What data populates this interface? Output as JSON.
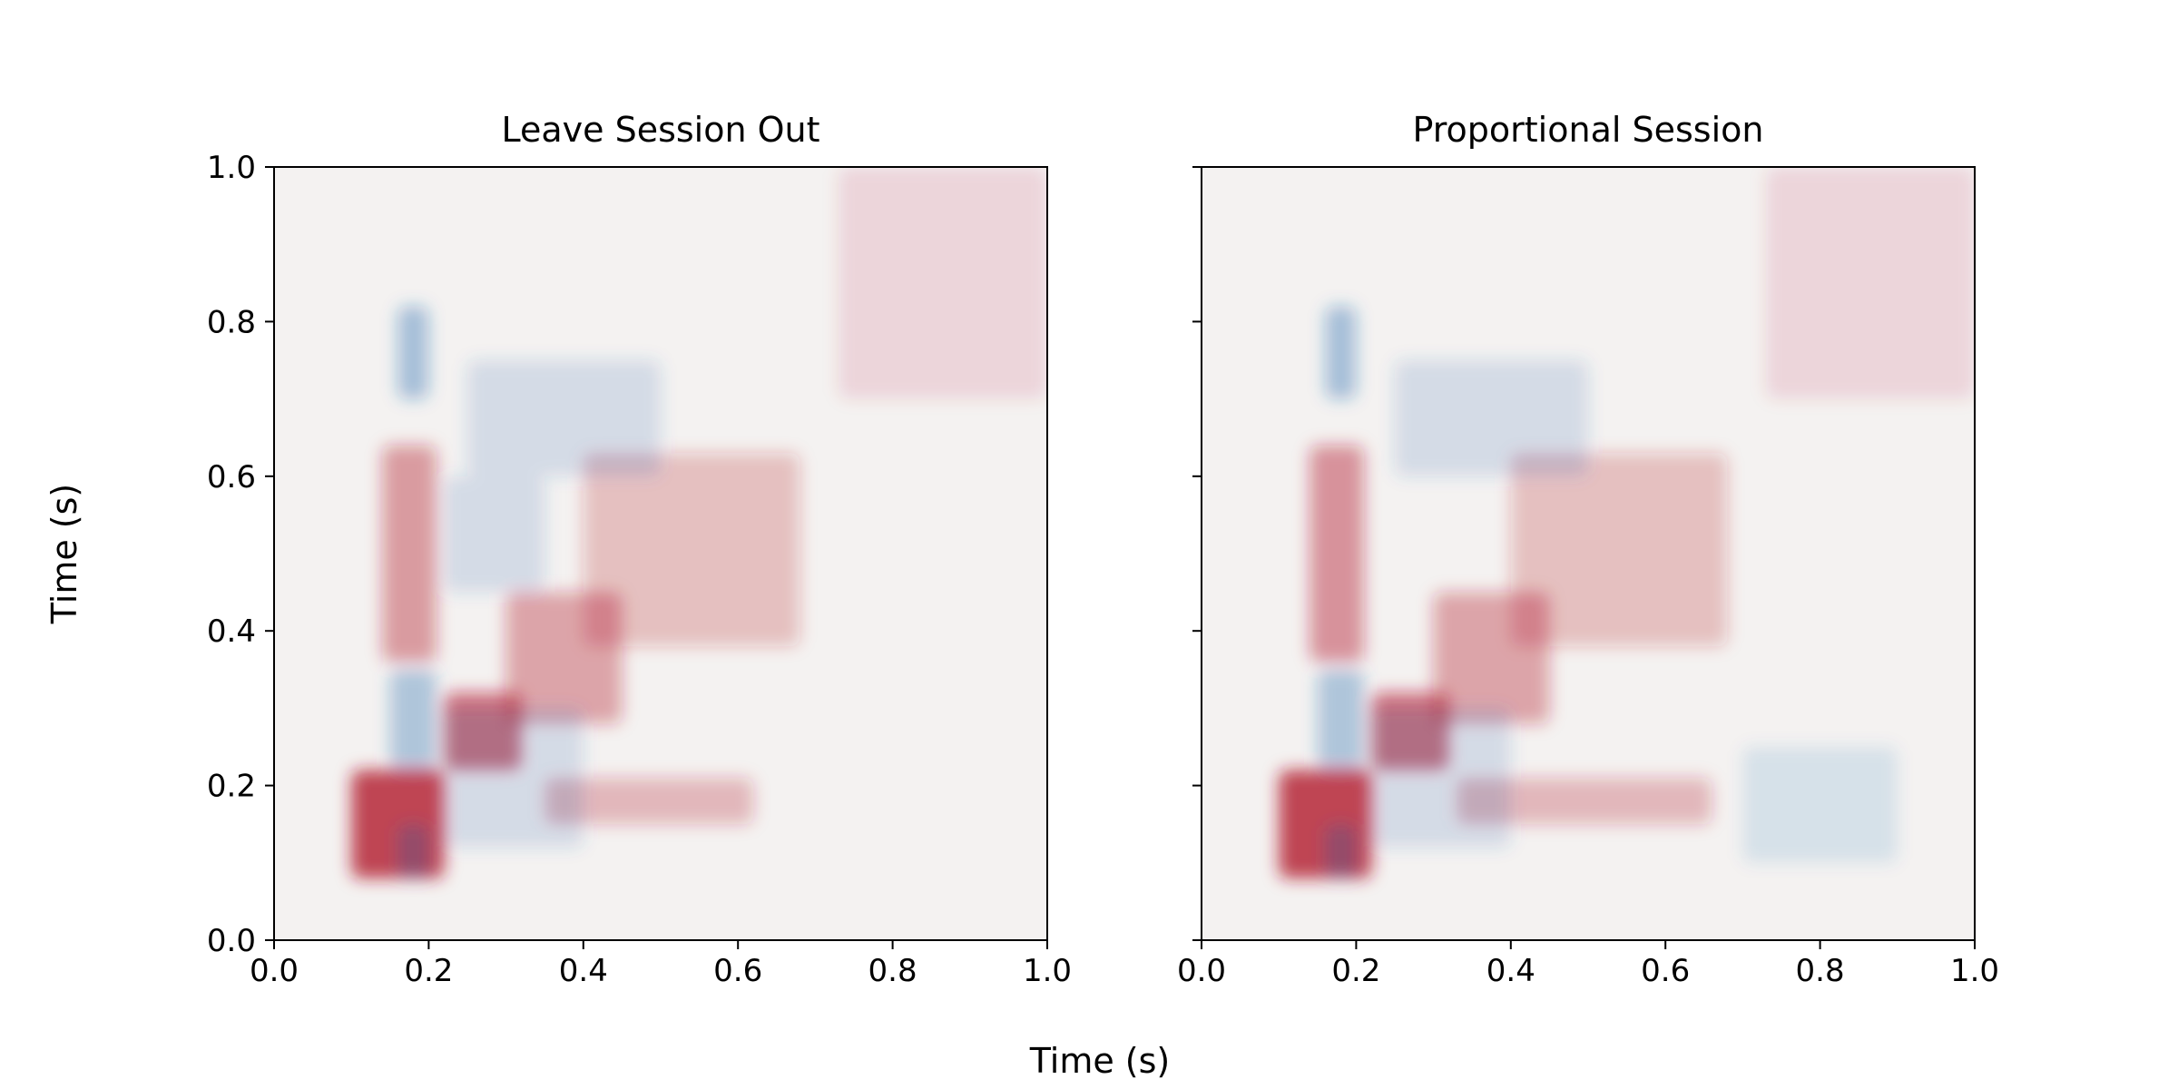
{
  "figure": {
    "xlabel": "Time (s)",
    "ylabel": "Time (s)"
  },
  "chart_data": [
    {
      "type": "heatmap",
      "title": "Leave Session Out",
      "xlabel": "Time (s)",
      "ylabel": "Time (s)",
      "xlim": [
        0.0,
        1.0
      ],
      "ylim": [
        0.0,
        1.0
      ],
      "xticks": [
        "0.0",
        "0.2",
        "0.4",
        "0.6",
        "0.8",
        "1.0"
      ],
      "yticks": [
        "0.0",
        "0.2",
        "0.4",
        "0.6",
        "0.8",
        "1.0"
      ],
      "colormap": "diverging blue-white-red (RdBu_r)",
      "grid": false,
      "legend": false,
      "regions": [
        {
          "x": [
            0.1,
            0.22
          ],
          "y": [
            0.08,
            0.22
          ],
          "sign": "positive",
          "strength": 1.0
        },
        {
          "x": [
            0.22,
            0.32
          ],
          "y": [
            0.22,
            0.32
          ],
          "sign": "positive",
          "strength": 0.75
        },
        {
          "x": [
            0.3,
            0.45
          ],
          "y": [
            0.28,
            0.45
          ],
          "sign": "positive",
          "strength": 0.45
        },
        {
          "x": [
            0.14,
            0.21
          ],
          "y": [
            0.36,
            0.64
          ],
          "sign": "positive",
          "strength": 0.5
        },
        {
          "x": [
            0.4,
            0.68
          ],
          "y": [
            0.38,
            0.63
          ],
          "sign": "positive",
          "strength": 0.3
        },
        {
          "x": [
            0.35,
            0.62
          ],
          "y": [
            0.15,
            0.21
          ],
          "sign": "positive",
          "strength": 0.35
        },
        {
          "x": [
            0.73,
            1.0
          ],
          "y": [
            0.7,
            1.0
          ],
          "sign": "positive",
          "strength": 0.15
        },
        {
          "x": [
            0.15,
            0.21
          ],
          "y": [
            0.22,
            0.35
          ],
          "sign": "negative",
          "strength": 0.4
        },
        {
          "x": [
            0.16,
            0.2
          ],
          "y": [
            0.7,
            0.82
          ],
          "sign": "negative",
          "strength": 0.45
        },
        {
          "x": [
            0.16,
            0.2
          ],
          "y": [
            0.08,
            0.15
          ],
          "sign": "negative",
          "strength": 0.35
        },
        {
          "x": [
            0.22,
            0.4
          ],
          "y": [
            0.12,
            0.3
          ],
          "sign": "negative",
          "strength": 0.2
        },
        {
          "x": [
            0.25,
            0.5
          ],
          "y": [
            0.6,
            0.75
          ],
          "sign": "negative",
          "strength": 0.2
        },
        {
          "x": [
            0.22,
            0.35
          ],
          "y": [
            0.45,
            0.6
          ],
          "sign": "negative",
          "strength": 0.2
        }
      ]
    },
    {
      "type": "heatmap",
      "title": "Proportional Session",
      "xlabel": "Time (s)",
      "ylabel": "Time (s)",
      "xlim": [
        0.0,
        1.0
      ],
      "ylim": [
        0.0,
        1.0
      ],
      "xticks": [
        "0.0",
        "0.2",
        "0.4",
        "0.6",
        "0.8",
        "1.0"
      ],
      "yticks": [],
      "colormap": "diverging blue-white-red (RdBu_r)",
      "grid": false,
      "legend": false,
      "regions": [
        {
          "x": [
            0.1,
            0.22
          ],
          "y": [
            0.08,
            0.22
          ],
          "sign": "positive",
          "strength": 1.0
        },
        {
          "x": [
            0.22,
            0.32
          ],
          "y": [
            0.22,
            0.32
          ],
          "sign": "positive",
          "strength": 0.75
        },
        {
          "x": [
            0.3,
            0.45
          ],
          "y": [
            0.28,
            0.45
          ],
          "sign": "positive",
          "strength": 0.45
        },
        {
          "x": [
            0.14,
            0.21
          ],
          "y": [
            0.36,
            0.64
          ],
          "sign": "positive",
          "strength": 0.55
        },
        {
          "x": [
            0.4,
            0.68
          ],
          "y": [
            0.38,
            0.63
          ],
          "sign": "positive",
          "strength": 0.3
        },
        {
          "x": [
            0.33,
            0.66
          ],
          "y": [
            0.15,
            0.21
          ],
          "sign": "positive",
          "strength": 0.35
        },
        {
          "x": [
            0.73,
            1.0
          ],
          "y": [
            0.7,
            1.0
          ],
          "sign": "positive",
          "strength": 0.15
        },
        {
          "x": [
            0.15,
            0.21
          ],
          "y": [
            0.22,
            0.35
          ],
          "sign": "negative",
          "strength": 0.4
        },
        {
          "x": [
            0.16,
            0.2
          ],
          "y": [
            0.7,
            0.82
          ],
          "sign": "negative",
          "strength": 0.45
        },
        {
          "x": [
            0.16,
            0.2
          ],
          "y": [
            0.08,
            0.15
          ],
          "sign": "negative",
          "strength": 0.35
        },
        {
          "x": [
            0.22,
            0.4
          ],
          "y": [
            0.12,
            0.3
          ],
          "sign": "negative",
          "strength": 0.2
        },
        {
          "x": [
            0.25,
            0.5
          ],
          "y": [
            0.6,
            0.75
          ],
          "sign": "negative",
          "strength": 0.2
        },
        {
          "x": [
            0.7,
            0.9
          ],
          "y": [
            0.1,
            0.25
          ],
          "sign": "negative",
          "strength": 0.15
        }
      ]
    }
  ]
}
